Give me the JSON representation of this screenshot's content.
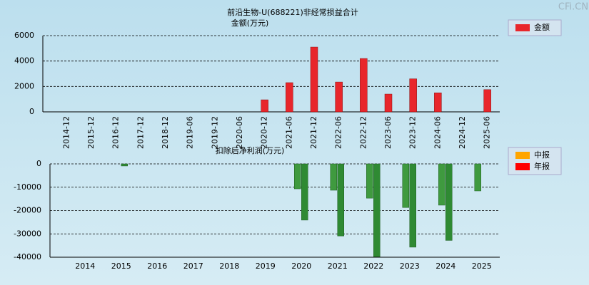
{
  "watermark": "CFi.CN",
  "chart_data": [
    {
      "type": "bar",
      "title": "前沿生物-U(688221)非经常损益合计",
      "y_label": "金额(万元)",
      "categories": [
        "2014-12",
        "2015-12",
        "2016-12",
        "2017-12",
        "2018-12",
        "2019-06",
        "2019-12",
        "2020-06",
        "2020-12",
        "2021-06",
        "2021-12",
        "2022-06",
        "2022-12",
        "2023-06",
        "2023-12",
        "2024-06",
        "2024-12",
        "2025-06"
      ],
      "series": [
        {
          "name": "金额",
          "color": "#e8262b",
          "values": [
            0,
            0,
            0,
            0,
            0,
            0,
            0,
            0,
            950,
            2300,
            5100,
            2350,
            4200,
            1400,
            2600,
            1500,
            0,
            1750
          ]
        }
      ],
      "ylim": [
        0,
        6000
      ],
      "yticks": [
        0,
        2000,
        4000,
        6000
      ],
      "grid": true
    },
    {
      "type": "grouped-bar",
      "title": "扣除后净利润(万元)",
      "categories": [
        "2014",
        "2015",
        "2016",
        "2017",
        "2018",
        "2019",
        "2020",
        "2021",
        "2022",
        "2023",
        "2024",
        "2025"
      ],
      "series": [
        {
          "name": "中报",
          "color": "#ffa500",
          "negative_color": "#3f9a3f",
          "values": [
            null,
            null,
            null,
            null,
            null,
            null,
            -10700,
            -11300,
            -14700,
            -18700,
            -17700,
            -11600
          ]
        },
        {
          "name": "年报",
          "color": "#ff0000",
          "negative_color": "#2f8a33",
          "values": [
            null,
            -900,
            null,
            null,
            null,
            null,
            -24100,
            -30900,
            -39800,
            -35700,
            -32800,
            null
          ]
        }
      ],
      "ylim": [
        -40000,
        0
      ],
      "yticks": [
        -40000,
        -30000,
        -20000,
        -10000,
        0
      ],
      "grid": true
    }
  ]
}
